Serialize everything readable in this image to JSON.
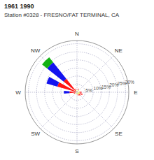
{
  "chart_data": {
    "type": "wind_rose",
    "title": "1961 1990",
    "subtitle": "Station #0328 - FRESNO/FAT TERMINAL, CA",
    "x": [
      315,
      292.5,
      270,
      337.5,
      22.5,
      90,
      112.5,
      135,
      157.5,
      180,
      202.5,
      247.5
    ],
    "series": [
      {
        "color": "#ffff00",
        "values": [
          null,
          null,
          null,
          0.01,
          0.01,
          0.01,
          0.012,
          0.01,
          0.008,
          0.006,
          0.005,
          0.007
        ]
      },
      {
        "color": "#ff0000",
        "values": [
          0.1,
          0.12,
          0.04,
          0.008,
          0.008,
          0.012,
          0.018,
          0.012,
          0.008,
          null,
          null,
          0.008
        ]
      },
      {
        "color": "#0000ee",
        "values": [
          0.13,
          0.07,
          0.035,
          null,
          null,
          null,
          null,
          null,
          null,
          null,
          null,
          null
        ]
      },
      {
        "color": "#00aa00",
        "values": [
          0.04,
          null,
          null,
          null,
          null,
          null,
          null,
          null,
          null,
          null,
          null,
          null
        ]
      }
    ],
    "stacked": true,
    "calm": 0.006,
    "xlim": [
      0,
      360
    ],
    "xticks": [
      {
        "value": 0,
        "label": "N"
      },
      {
        "value": 45,
        "label": "NE"
      },
      {
        "value": 90,
        "label": "E"
      },
      {
        "value": 135,
        "label": "SE"
      },
      {
        "value": 180,
        "label": "S"
      },
      {
        "value": 225,
        "label": "SW"
      },
      {
        "value": 270,
        "label": "W"
      },
      {
        "value": 315,
        "label": "NW"
      }
    ],
    "ylim": [
      0,
      0.32
    ],
    "yticks": [
      {
        "value": 0.05,
        "label": "5%"
      },
      {
        "value": 0.1,
        "label": "10%"
      },
      {
        "value": 0.15,
        "label": "15%"
      },
      {
        "value": 0.2,
        "label": "20%"
      },
      {
        "value": 0.25,
        "label": "25%"
      },
      {
        "value": 0.3,
        "label": "30%"
      }
    ],
    "grid": true
  }
}
